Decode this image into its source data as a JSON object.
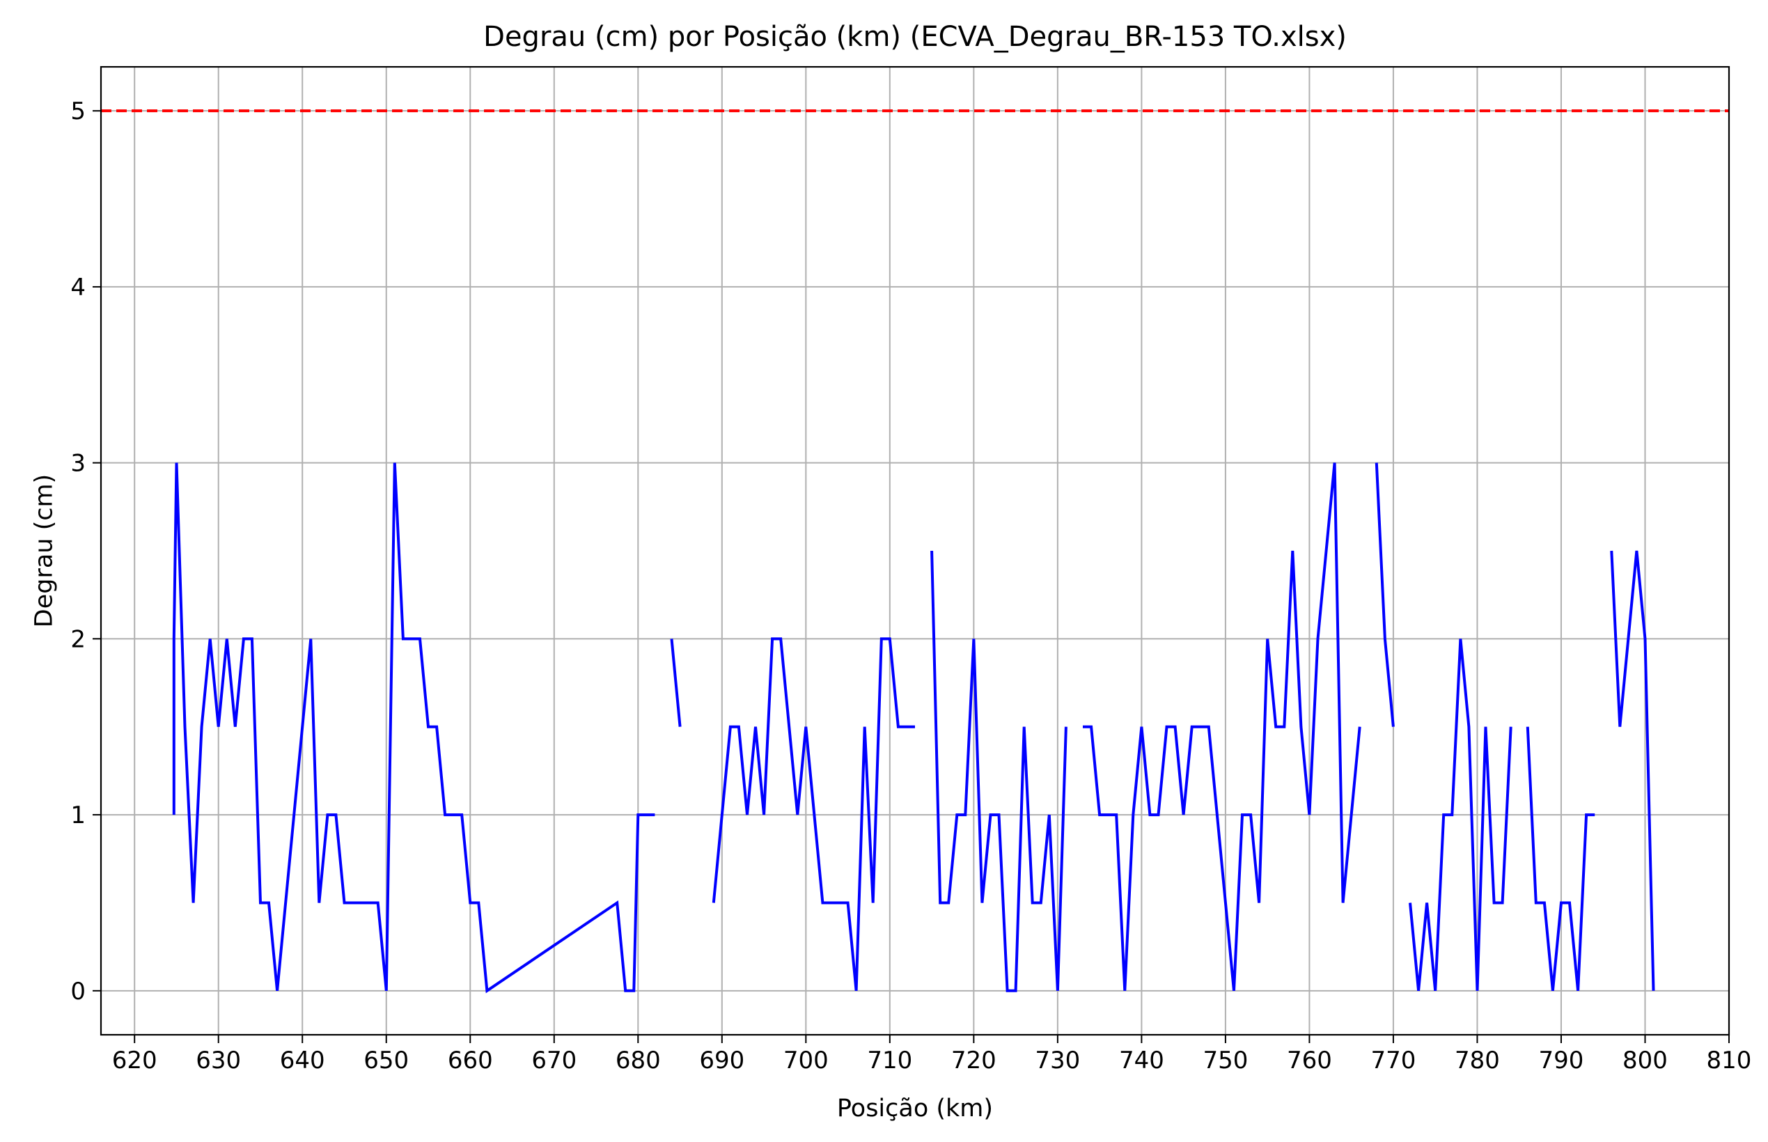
{
  "chart_data": {
    "type": "line",
    "title": "Degrau (cm) por Posição (km) (ECVA_Degrau_BR-153 TO.xlsx)",
    "xlabel": "Posição (km)",
    "ylabel": "Degrau (cm)",
    "xlim": [
      616,
      810
    ],
    "ylim": [
      -0.25,
      5.25
    ],
    "xticks": [
      620,
      630,
      640,
      650,
      660,
      670,
      680,
      690,
      700,
      710,
      720,
      730,
      740,
      750,
      760,
      770,
      780,
      790,
      800,
      810
    ],
    "yticks": [
      0,
      1,
      2,
      3,
      4,
      5
    ],
    "grid": true,
    "colors": {
      "series": "#0000ff",
      "threshold": "#ff0000",
      "grid": "#b0b0b0"
    },
    "threshold": {
      "y": 5,
      "style": "dashed"
    },
    "series": [
      {
        "segments": [
          [
            [
              624.7,
              1
            ],
            [
              624.7,
              2
            ],
            [
              625,
              3
            ],
            [
              626,
              1.5
            ],
            [
              627,
              0.5
            ],
            [
              628,
              1.5
            ],
            [
              629,
              2
            ],
            [
              630,
              1.5
            ],
            [
              631,
              2
            ],
            [
              632,
              1.5
            ],
            [
              633,
              2
            ],
            [
              634,
              2
            ],
            [
              635,
              0.5
            ],
            [
              636,
              0.5
            ],
            [
              637,
              0
            ],
            [
              641,
              2
            ],
            [
              642,
              0.5
            ],
            [
              643,
              1
            ],
            [
              644,
              1
            ],
            [
              645,
              0.5
            ],
            [
              649,
              0.5
            ],
            [
              650,
              0
            ],
            [
              651,
              3
            ],
            [
              652,
              2
            ],
            [
              654,
              2
            ],
            [
              655,
              1.5
            ],
            [
              656,
              1.5
            ],
            [
              657,
              1
            ],
            [
              659,
              1
            ],
            [
              660,
              0.5
            ],
            [
              661,
              0.5
            ],
            [
              662,
              0
            ],
            [
              677.5,
              0.5
            ],
            [
              678.5,
              0
            ],
            [
              679.5,
              0
            ],
            [
              680,
              1
            ],
            [
              682,
              1
            ]
          ],
          [
            [
              684,
              2
            ],
            [
              685,
              1.5
            ]
          ],
          [
            [
              689,
              0.5
            ],
            [
              691,
              1.5
            ],
            [
              692,
              1.5
            ],
            [
              693,
              1
            ],
            [
              694,
              1.5
            ],
            [
              695,
              1
            ],
            [
              696,
              2
            ],
            [
              697,
              2
            ],
            [
              699,
              1
            ],
            [
              700,
              1.5
            ],
            [
              702,
              0.5
            ],
            [
              705,
              0.5
            ],
            [
              706,
              0
            ],
            [
              707,
              1.5
            ],
            [
              708,
              0.5
            ],
            [
              709,
              2
            ],
            [
              710,
              2
            ],
            [
              711,
              1.5
            ],
            [
              713,
              1.5
            ]
          ],
          [
            [
              715,
              2.5
            ],
            [
              716,
              0.5
            ],
            [
              717,
              0.5
            ],
            [
              718,
              1
            ],
            [
              719,
              1
            ],
            [
              720,
              2
            ],
            [
              721,
              0.5
            ],
            [
              722,
              1
            ],
            [
              723,
              1
            ],
            [
              724,
              0
            ],
            [
              725,
              0
            ],
            [
              726,
              1.5
            ],
            [
              727,
              0.5
            ],
            [
              728,
              0.5
            ],
            [
              729,
              1
            ],
            [
              730,
              0
            ],
            [
              731,
              1.5
            ]
          ],
          [
            [
              733,
              1.5
            ],
            [
              734,
              1.5
            ],
            [
              735,
              1
            ],
            [
              737,
              1
            ],
            [
              738,
              0
            ],
            [
              739,
              1
            ],
            [
              740,
              1.5
            ],
            [
              741,
              1
            ],
            [
              742,
              1
            ],
            [
              743,
              1.5
            ],
            [
              744,
              1.5
            ],
            [
              745,
              1
            ],
            [
              746,
              1.5
            ],
            [
              748,
              1.5
            ],
            [
              751,
              0
            ],
            [
              752,
              1
            ],
            [
              753,
              1
            ],
            [
              754,
              0.5
            ],
            [
              755,
              2
            ],
            [
              756,
              1.5
            ],
            [
              757,
              1.5
            ],
            [
              758,
              2.5
            ],
            [
              759,
              1.5
            ],
            [
              760,
              1
            ],
            [
              761,
              2
            ],
            [
              763,
              3
            ],
            [
              764,
              0.5
            ],
            [
              766,
              1.5
            ]
          ],
          [
            [
              768,
              3
            ],
            [
              769,
              2
            ],
            [
              770,
              1.5
            ]
          ],
          [
            [
              772,
              0.5
            ],
            [
              773,
              0
            ],
            [
              774,
              0.5
            ],
            [
              775,
              0
            ],
            [
              776,
              1
            ],
            [
              777,
              1
            ],
            [
              778,
              2
            ],
            [
              779,
              1.5
            ],
            [
              780,
              0
            ],
            [
              781,
              1.5
            ],
            [
              782,
              0.5
            ],
            [
              783,
              0.5
            ],
            [
              784,
              1.5
            ]
          ],
          [
            [
              786,
              1.5
            ],
            [
              787,
              0.5
            ],
            [
              788,
              0.5
            ],
            [
              789,
              0
            ],
            [
              790,
              0.5
            ],
            [
              791,
              0.5
            ],
            [
              792,
              0
            ],
            [
              793,
              1
            ],
            [
              794,
              1
            ]
          ],
          [
            [
              796,
              2.5
            ],
            [
              797,
              1.5
            ],
            [
              799,
              2.5
            ],
            [
              800,
              2
            ],
            [
              801,
              0
            ]
          ]
        ]
      }
    ]
  }
}
